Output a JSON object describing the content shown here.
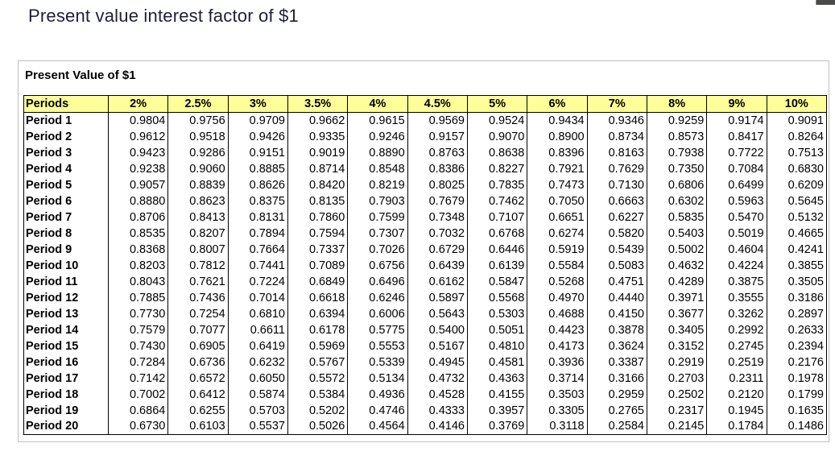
{
  "page": {
    "title": "Present value interest factor of $1"
  },
  "panel": {
    "title": "Present Value of $1"
  },
  "colors": {
    "header_background": "#ffff99",
    "table_border": "#000000",
    "panel_border": "#bfbfbf",
    "title_text": "#1c2137",
    "corner_fragment": "#4a4a48"
  },
  "table": {
    "columns": [
      "Periods",
      "2%",
      "2.5%",
      "3%",
      "3.5%",
      "4%",
      "4.5%",
      "5%",
      "6%",
      "7%",
      "8%",
      "9%",
      "10%"
    ],
    "rows": [
      {
        "period": "Period 1",
        "values": [
          "0.9804",
          "0.9756",
          "0.9709",
          "0.9662",
          "0.9615",
          "0.9569",
          "0.9524",
          "0.9434",
          "0.9346",
          "0.9259",
          "0.9174",
          "0.9091"
        ]
      },
      {
        "period": "Period 2",
        "values": [
          "0.9612",
          "0.9518",
          "0.9426",
          "0.9335",
          "0.9246",
          "0.9157",
          "0.9070",
          "0.8900",
          "0.8734",
          "0.8573",
          "0.8417",
          "0.8264"
        ]
      },
      {
        "period": "Period 3",
        "values": [
          "0.9423",
          "0.9286",
          "0.9151",
          "0.9019",
          "0.8890",
          "0.8763",
          "0.8638",
          "0.8396",
          "0.8163",
          "0.7938",
          "0.7722",
          "0.7513"
        ]
      },
      {
        "period": "Period 4",
        "values": [
          "0.9238",
          "0.9060",
          "0.8885",
          "0.8714",
          "0.8548",
          "0.8386",
          "0.8227",
          "0.7921",
          "0.7629",
          "0.7350",
          "0.7084",
          "0.6830"
        ]
      },
      {
        "period": "Period 5",
        "values": [
          "0.9057",
          "0.8839",
          "0.8626",
          "0.8420",
          "0.8219",
          "0.8025",
          "0.7835",
          "0.7473",
          "0.7130",
          "0.6806",
          "0.6499",
          "0.6209"
        ]
      },
      {
        "period": "Period 6",
        "values": [
          "0.8880",
          "0.8623",
          "0.8375",
          "0.8135",
          "0.7903",
          "0.7679",
          "0.7462",
          "0.7050",
          "0.6663",
          "0.6302",
          "0.5963",
          "0.5645"
        ]
      },
      {
        "period": "Period 7",
        "values": [
          "0.8706",
          "0.8413",
          "0.8131",
          "0.7860",
          "0.7599",
          "0.7348",
          "0.7107",
          "0.6651",
          "0.6227",
          "0.5835",
          "0.5470",
          "0.5132"
        ]
      },
      {
        "period": "Period 8",
        "values": [
          "0.8535",
          "0.8207",
          "0.7894",
          "0.7594",
          "0.7307",
          "0.7032",
          "0.6768",
          "0.6274",
          "0.5820",
          "0.5403",
          "0.5019",
          "0.4665"
        ]
      },
      {
        "period": "Period 9",
        "values": [
          "0.8368",
          "0.8007",
          "0.7664",
          "0.7337",
          "0.7026",
          "0.6729",
          "0.6446",
          "0.5919",
          "0.5439",
          "0.5002",
          "0.4604",
          "0.4241"
        ]
      },
      {
        "period": "Period 10",
        "values": [
          "0.8203",
          "0.7812",
          "0.7441",
          "0.7089",
          "0.6756",
          "0.6439",
          "0.6139",
          "0.5584",
          "0.5083",
          "0.4632",
          "0.4224",
          "0.3855"
        ]
      },
      {
        "period": "Period 11",
        "values": [
          "0.8043",
          "0.7621",
          "0.7224",
          "0.6849",
          "0.6496",
          "0.6162",
          "0.5847",
          "0.5268",
          "0.4751",
          "0.4289",
          "0.3875",
          "0.3505"
        ]
      },
      {
        "period": "Period 12",
        "values": [
          "0.7885",
          "0.7436",
          "0.7014",
          "0.6618",
          "0.6246",
          "0.5897",
          "0.5568",
          "0.4970",
          "0.4440",
          "0.3971",
          "0.3555",
          "0.3186"
        ]
      },
      {
        "period": "Period 13",
        "values": [
          "0.7730",
          "0.7254",
          "0.6810",
          "0.6394",
          "0.6006",
          "0.5643",
          "0.5303",
          "0.4688",
          "0.4150",
          "0.3677",
          "0.3262",
          "0.2897"
        ]
      },
      {
        "period": "Period 14",
        "values": [
          "0.7579",
          "0.7077",
          "0.6611",
          "0.6178",
          "0.5775",
          "0.5400",
          "0.5051",
          "0.4423",
          "0.3878",
          "0.3405",
          "0.2992",
          "0.2633"
        ]
      },
      {
        "period": "Period 15",
        "values": [
          "0.7430",
          "0.6905",
          "0.6419",
          "0.5969",
          "0.5553",
          "0.5167",
          "0.4810",
          "0.4173",
          "0.3624",
          "0.3152",
          "0.2745",
          "0.2394"
        ]
      },
      {
        "period": "Period 16",
        "values": [
          "0.7284",
          "0.6736",
          "0.6232",
          "0.5767",
          "0.5339",
          "0.4945",
          "0.4581",
          "0.3936",
          "0.3387",
          "0.2919",
          "0.2519",
          "0.2176"
        ]
      },
      {
        "period": "Period 17",
        "values": [
          "0.7142",
          "0.6572",
          "0.6050",
          "0.5572",
          "0.5134",
          "0.4732",
          "0.4363",
          "0.3714",
          "0.3166",
          "0.2703",
          "0.2311",
          "0.1978"
        ]
      },
      {
        "period": "Period 18",
        "values": [
          "0.7002",
          "0.6412",
          "0.5874",
          "0.5384",
          "0.4936",
          "0.4528",
          "0.4155",
          "0.3503",
          "0.2959",
          "0.2502",
          "0.2120",
          "0.1799"
        ]
      },
      {
        "period": "Period 19",
        "values": [
          "0.6864",
          "0.6255",
          "0.5703",
          "0.5202",
          "0.4746",
          "0.4333",
          "0.3957",
          "0.3305",
          "0.2765",
          "0.2317",
          "0.1945",
          "0.1635"
        ]
      },
      {
        "period": "Period 20",
        "values": [
          "0.6730",
          "0.6103",
          "0.5537",
          "0.5026",
          "0.4564",
          "0.4146",
          "0.3769",
          "0.3118",
          "0.2584",
          "0.2145",
          "0.1784",
          "0.1486"
        ]
      }
    ]
  }
}
